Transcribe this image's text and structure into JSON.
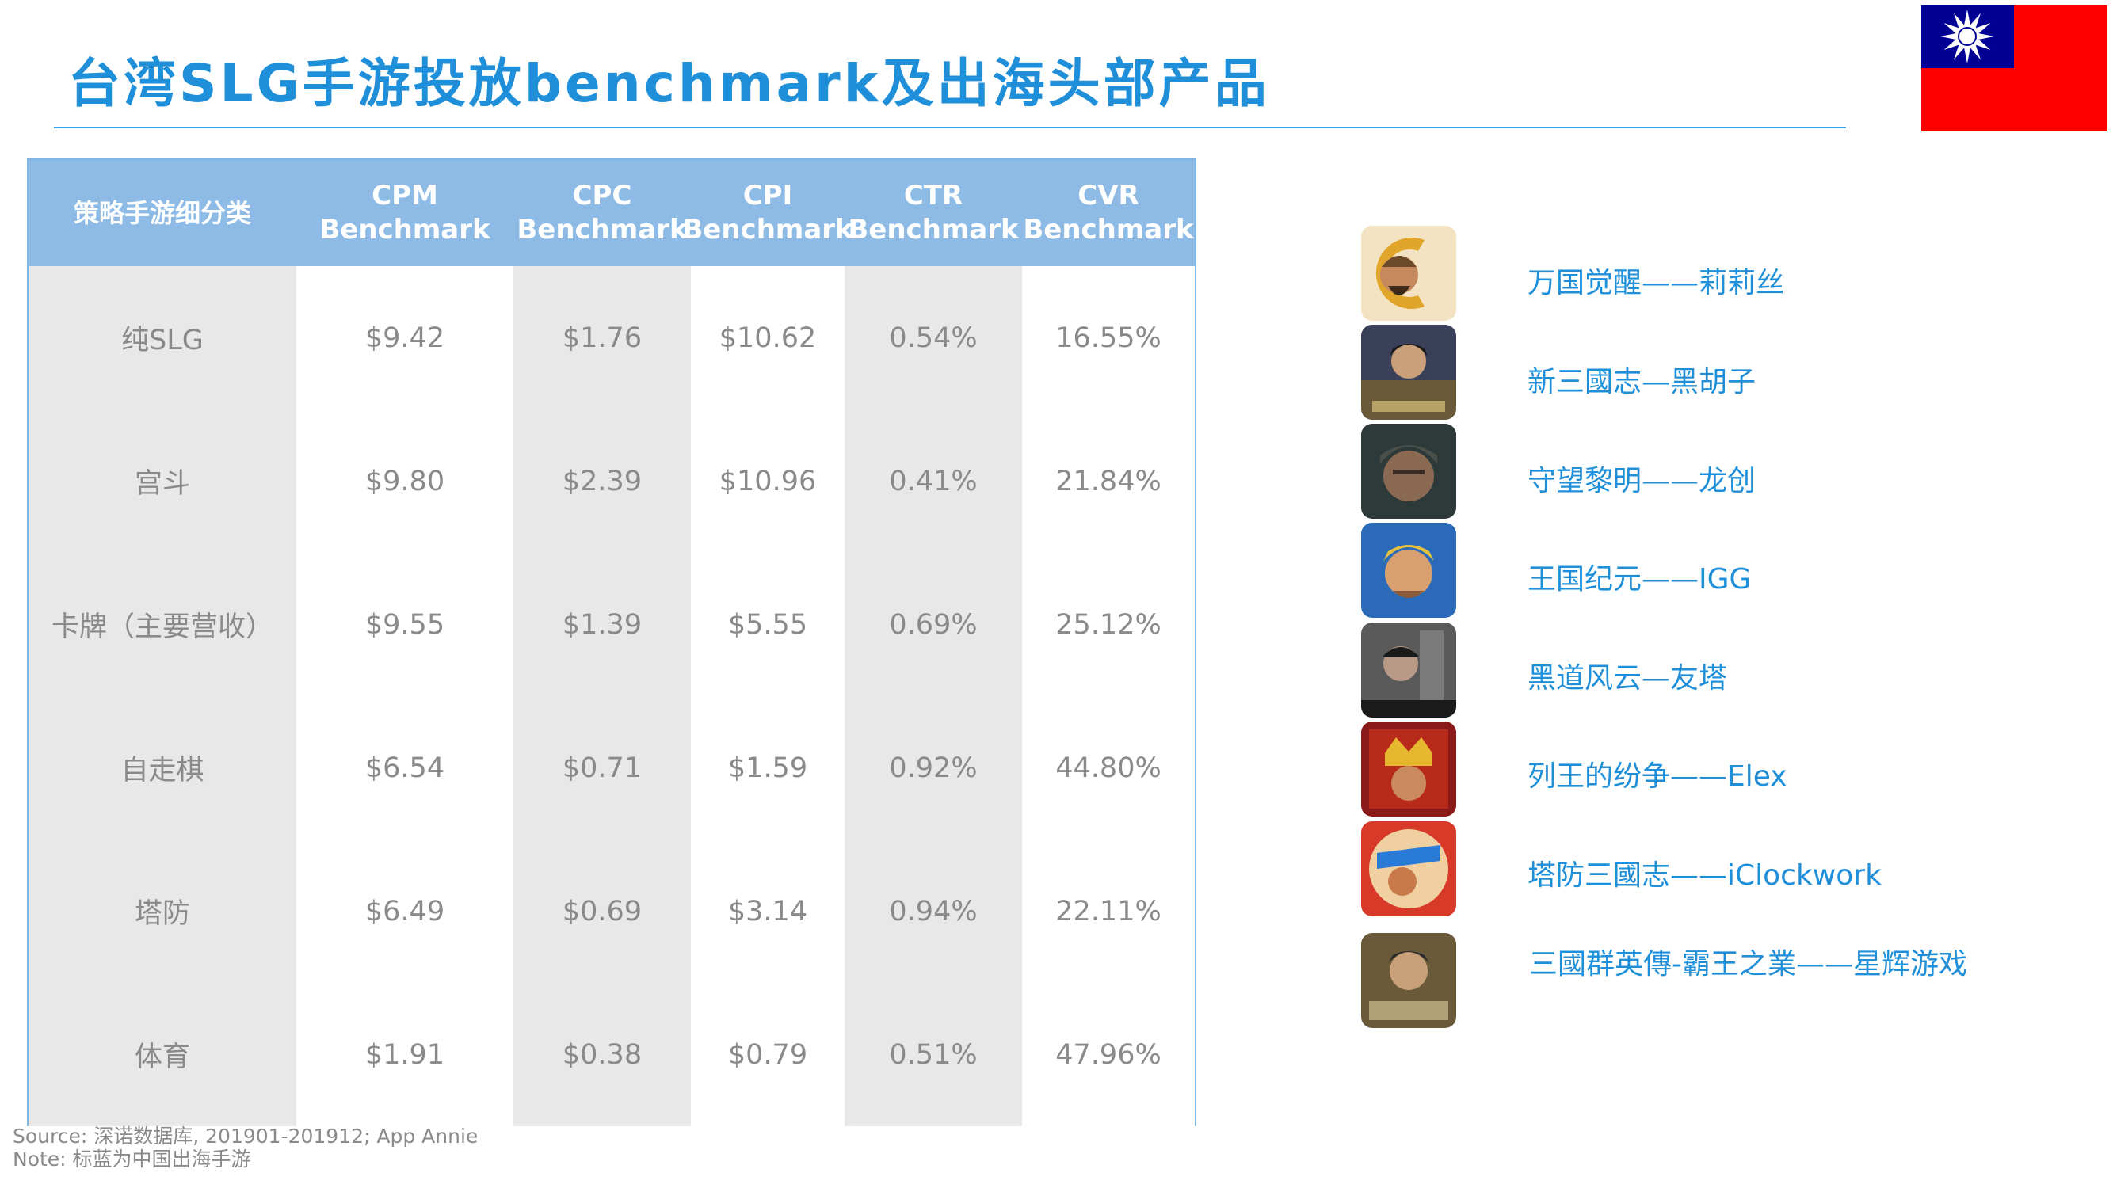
{
  "title": "台湾SLG手游投放benchmark及出海头部产品",
  "table": {
    "headers": [
      {
        "line1": "策略手游细分类",
        "line2": ""
      },
      {
        "line1": "CPM",
        "line2": "Benchmark"
      },
      {
        "line1": "CPC",
        "line2": "Benchmark"
      },
      {
        "line1": "CPI",
        "line2": "Benchmark"
      },
      {
        "line1": "CTR",
        "line2": "Benchmark"
      },
      {
        "line1": "CVR",
        "line2": "Benchmark"
      }
    ],
    "rows": [
      [
        "纯SLG",
        "$9.42",
        "$1.76",
        "$10.62",
        "0.54%",
        "16.55%"
      ],
      [
        "宫斗",
        "$9.80",
        "$2.39",
        "$10.96",
        "0.41%",
        "21.84%"
      ],
      [
        "卡牌（主要营收）",
        "$9.55",
        "$1.39",
        "$5.55",
        "0.69%",
        "25.12%"
      ],
      [
        "自走棋",
        "$6.54",
        "$0.71",
        "$1.59",
        "0.92%",
        "44.80%"
      ],
      [
        "塔防",
        "$6.49",
        "$0.69",
        "$3.14",
        "0.94%",
        "22.11%"
      ],
      [
        "体育",
        "$1.91",
        "$0.38",
        "$0.79",
        "0.51%",
        "47.96%"
      ]
    ]
  },
  "products": [
    {
      "name": "万国觉醒——莉莉丝",
      "icon": "game-icon-rise-of-kingdoms"
    },
    {
      "name": "新三國志—黑胡子",
      "icon": "game-icon-new-three-kingdoms"
    },
    {
      "name": "守望黎明——龙创",
      "icon": "game-icon-last-shelter"
    },
    {
      "name": "王国纪元——IGG",
      "icon": "game-icon-lords-mobile"
    },
    {
      "name": "黑道风云—友塔",
      "icon": "game-icon-mafia-city"
    },
    {
      "name": "列王的纷争——Elex",
      "icon": "game-icon-clash-of-kings"
    },
    {
      "name": "塔防三國志——iClockwork",
      "icon": "game-icon-tower-defense-three-kingdoms"
    },
    {
      "name": "三國群英傳-霸王之業——星辉游戏",
      "icon": "game-icon-heroes-of-three-kingdoms"
    }
  ],
  "source": {
    "line1": "Source: 深诺数据库, 201901-201912; App Annie",
    "line2": "Note: 标蓝为中国出海手游"
  },
  "colors": {
    "accent": "#1e8fd8",
    "header_bg": "#8dbbe6",
    "shaded_col": "#e8e8e8",
    "cell_text": "#8a8a8a"
  }
}
